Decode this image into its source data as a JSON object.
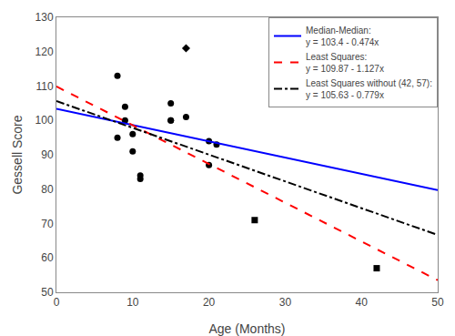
{
  "chart_data": {
    "type": "scatter",
    "xlabel": "Age (Months)",
    "ylabel": "Gessell Score",
    "xlim": [
      0,
      50
    ],
    "ylim": [
      50,
      130
    ],
    "xticks": [
      0,
      10,
      20,
      30,
      40,
      50
    ],
    "yticks": [
      50,
      60,
      70,
      80,
      90,
      100,
      110,
      120,
      130
    ],
    "grid": false,
    "legend": "upper right",
    "series": [
      {
        "type": "scatter",
        "marker": "circle",
        "color": "#000000",
        "x": [
          8,
          8,
          9,
          9,
          10,
          10,
          11,
          11,
          15,
          15,
          15,
          17,
          20,
          20,
          21
        ],
        "values": [
          95,
          113,
          100,
          104,
          91,
          96,
          83,
          84,
          100,
          100,
          105,
          101,
          94,
          87,
          93
        ]
      },
      {
        "type": "scatter",
        "marker": "diamond",
        "color": "#000000",
        "x": [
          17
        ],
        "values": [
          121
        ]
      },
      {
        "type": "scatter",
        "marker": "square",
        "color": "#000000",
        "x": [
          26,
          42
        ],
        "values": [
          71,
          57
        ]
      },
      {
        "type": "line",
        "name": "Median-Median:\ny = 103.4 - 0.474x",
        "color": "#0000FF",
        "line_style": "solid",
        "x": [
          0,
          50
        ],
        "values": [
          103.4,
          79.7
        ]
      },
      {
        "type": "line",
        "name": "Least Squares:\ny = 109.87 - 1.127x",
        "color": "#FF0000",
        "line_style": "dashed",
        "x": [
          0,
          50
        ],
        "values": [
          109.87,
          53.52
        ]
      },
      {
        "type": "line",
        "name": "Least Squares without (42, 57):\ny = 105.63 - 0.779x",
        "color": "#000000",
        "line_style": "dashdot",
        "x": [
          0,
          50
        ],
        "values": [
          105.63,
          66.68
        ]
      }
    ]
  }
}
